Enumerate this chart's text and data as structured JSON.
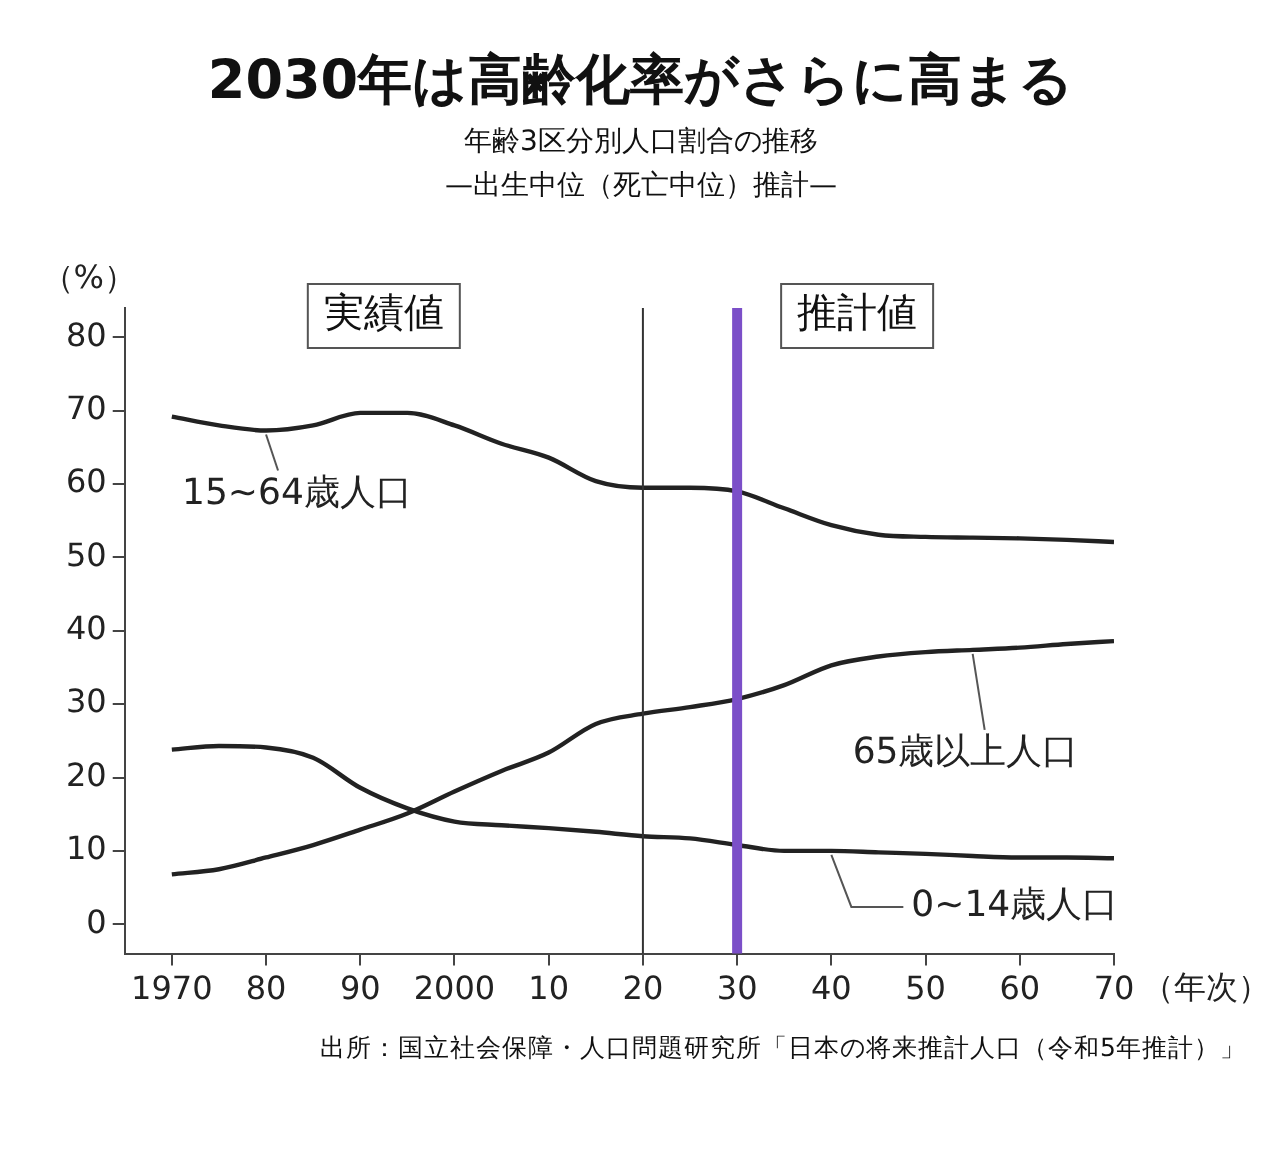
{
  "chart_data": {
    "type": "line",
    "title": "2030年は高齢化率がさらに高まる",
    "subtitle": "年齢3区分別人口割合の推移\n—出生中位（死亡中位）推計—",
    "xlabel": "（年次）",
    "ylabel": "（%）",
    "x": [
      1970,
      1975,
      1980,
      1985,
      1990,
      1995,
      2000,
      2005,
      2010,
      2015,
      2020,
      2025,
      2030,
      2035,
      2040,
      2045,
      2050,
      2055,
      2060,
      2065,
      2070
    ],
    "series": [
      {
        "name": "15~64歳人口",
        "color": "#222222",
        "values": [
          69.2,
          68.0,
          67.3,
          68.0,
          69.7,
          69.7,
          68.0,
          65.5,
          63.6,
          60.4,
          59.5,
          59.5,
          59.0,
          56.7,
          54.4,
          53.1,
          52.8,
          52.7,
          52.6,
          52.4,
          52.1
        ]
      },
      {
        "name": "65歳以上人口",
        "color": "#222222",
        "values": [
          6.8,
          7.5,
          9.1,
          10.8,
          12.9,
          15.1,
          18.1,
          20.9,
          23.4,
          27.3,
          28.7,
          29.6,
          30.7,
          32.6,
          35.3,
          36.5,
          37.1,
          37.4,
          37.7,
          38.2,
          38.6
        ]
      },
      {
        "name": "0~14歳人口",
        "color": "#222222",
        "values": [
          23.8,
          24.3,
          24.1,
          22.7,
          18.6,
          15.8,
          14.0,
          13.5,
          13.1,
          12.6,
          12.0,
          11.7,
          10.8,
          10.0,
          10.0,
          9.8,
          9.6,
          9.3,
          9.1,
          9.1,
          9.0
        ]
      }
    ],
    "xlim": [
      1965,
      2070
    ],
    "xticks": [
      1970,
      {
        "value": 1980,
        "label": "80"
      },
      {
        "value": 1990,
        "label": "90"
      },
      2000,
      {
        "value": 2010,
        "label": "10"
      },
      {
        "value": 2020,
        "label": "20"
      },
      {
        "value": 2030,
        "label": "30"
      },
      {
        "value": 2040,
        "label": "40"
      },
      {
        "value": 2050,
        "label": "50"
      },
      {
        "value": 2060,
        "label": "60"
      },
      {
        "value": 2070,
        "label": "70"
      }
    ],
    "ylim": [
      -4,
      84
    ],
    "yticks": [
      0,
      10,
      20,
      30,
      40,
      50,
      60,
      70,
      80
    ],
    "ref_lines": [
      {
        "axis": "x",
        "value": 2020,
        "color": "#333333"
      },
      {
        "axis": "x",
        "value": 2030,
        "color": "#7b4fc8"
      }
    ],
    "annotations": [
      "実績値",
      "推計値",
      "出所：国立社会保障・人口問題研究所「日本の将来推計人口（令和5年推計）」"
    ],
    "grid": false,
    "legend": false
  }
}
